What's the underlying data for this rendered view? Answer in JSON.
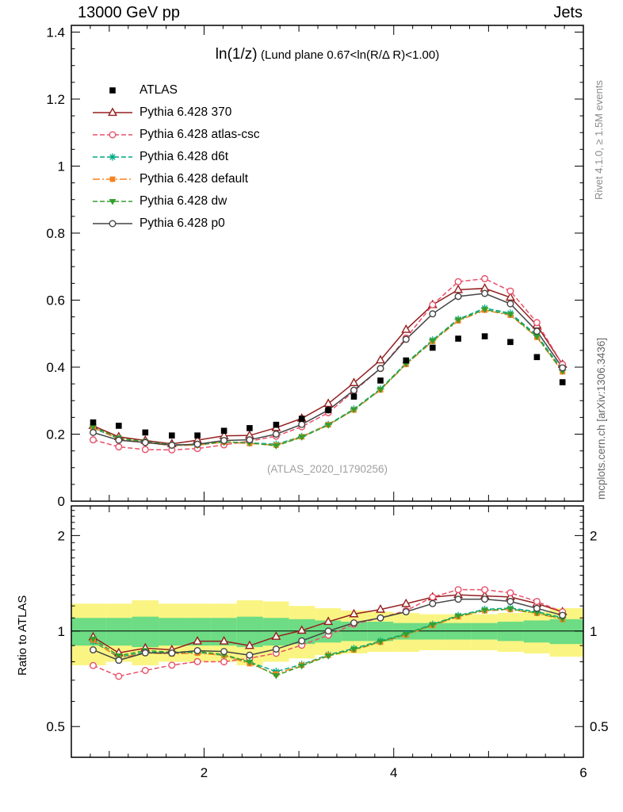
{
  "header": {
    "left": "13000 GeV pp",
    "right": "Jets"
  },
  "side_notes": {
    "rivet": "Rivet 4.1.0, ≥ 1.5M events",
    "mcplots": "mcplots.cern.ch [arXiv:1306.3436]"
  },
  "watermark": "(ATLAS_2020_I1790256)",
  "ratio_axis_label": "Ratio to ATLAS",
  "title": {
    "observable": "ln(1/z)",
    "selection": "(Lund plane 0.67<ln(R/Δ R)<1.00)"
  },
  "chart_data": {
    "type": "line",
    "title": "ln(1/z) (Lund plane 0.67<ln(R/Δ R)<1.00)",
    "xlabel": "",
    "ylabel": "",
    "ratio_ylabel": "Ratio to ATLAS",
    "legend_position": "top-left",
    "grid": false,
    "xlim": [
      0.6,
      6.0
    ],
    "ylim_main": [
      0,
      1.42
    ],
    "ylim_ratio": [
      0.4,
      2.48
    ],
    "ratio_scale": "log",
    "x_ticks": [
      2,
      4,
      6
    ],
    "y_ticks_main": [
      0,
      0.2,
      0.4,
      0.6,
      0.8,
      1,
      1.2,
      1.4
    ],
    "y_ticks_ratio": [
      0.5,
      1,
      2
    ],
    "x": [
      0.83,
      1.1,
      1.38,
      1.66,
      1.93,
      2.21,
      2.48,
      2.76,
      3.03,
      3.31,
      3.58,
      3.86,
      4.13,
      4.41,
      4.68,
      4.96,
      5.23,
      5.51,
      5.78
    ],
    "reference": {
      "name": "ATLAS",
      "color": "#000000",
      "marker": "square",
      "line": "none",
      "values": [
        0.235,
        0.225,
        0.205,
        0.196,
        0.196,
        0.21,
        0.218,
        0.228,
        0.246,
        0.272,
        0.312,
        0.36,
        0.42,
        0.458,
        0.485,
        0.492,
        0.475,
        0.43,
        0.355
      ]
    },
    "series": [
      {
        "name": "Pythia 6.428 370",
        "color": "#941f1f",
        "line": "solid",
        "marker": "triangle-open",
        "values": [
          0.225,
          0.192,
          0.181,
          0.171,
          0.182,
          0.195,
          0.196,
          0.219,
          0.247,
          0.291,
          0.353,
          0.421,
          0.512,
          0.586,
          0.631,
          0.635,
          0.608,
          0.525,
          0.408
        ]
      },
      {
        "name": "Pythia 6.428 atlas-csc",
        "color": "#e8506a",
        "line": "dashed",
        "marker": "circle-open",
        "values": [
          0.183,
          0.162,
          0.154,
          0.153,
          0.157,
          0.168,
          0.179,
          0.194,
          0.222,
          0.264,
          0.328,
          0.396,
          0.487,
          0.586,
          0.655,
          0.664,
          0.627,
          0.533,
          0.408
        ]
      },
      {
        "name": "Pythia 6.428 d6t",
        "color": "#00a884",
        "line": "dashed",
        "marker": "asterisk",
        "values": [
          0.218,
          0.186,
          0.176,
          0.167,
          0.168,
          0.176,
          0.174,
          0.17,
          0.193,
          0.229,
          0.275,
          0.335,
          0.412,
          0.481,
          0.543,
          0.576,
          0.561,
          0.495,
          0.391
        ]
      },
      {
        "name": "Pythia 6.428 default",
        "color": "#f5821f",
        "line": "dashdot",
        "marker": "square-filled",
        "values": [
          0.22,
          0.185,
          0.175,
          0.166,
          0.167,
          0.176,
          0.172,
          0.167,
          0.192,
          0.228,
          0.272,
          0.332,
          0.408,
          0.477,
          0.538,
          0.57,
          0.555,
          0.489,
          0.386
        ]
      },
      {
        "name": "Pythia 6.428 dw",
        "color": "#33a02c",
        "line": "dashed",
        "marker": "triangle-down-filled",
        "values": [
          0.222,
          0.188,
          0.178,
          0.168,
          0.169,
          0.177,
          0.174,
          0.165,
          0.191,
          0.227,
          0.273,
          0.333,
          0.41,
          0.479,
          0.541,
          0.572,
          0.557,
          0.491,
          0.388
        ]
      },
      {
        "name": "Pythia 6.428 p0",
        "color": "#444444",
        "line": "solid",
        "marker": "circle-open",
        "values": [
          0.205,
          0.182,
          0.175,
          0.167,
          0.17,
          0.181,
          0.183,
          0.2,
          0.229,
          0.272,
          0.331,
          0.396,
          0.483,
          0.559,
          0.611,
          0.62,
          0.589,
          0.507,
          0.398
        ]
      }
    ],
    "bands": {
      "yellow": {
        "color": "#faf582",
        "lo": [
          0.78,
          0.8,
          0.78,
          0.8,
          0.8,
          0.8,
          0.78,
          0.8,
          0.82,
          0.84,
          0.85,
          0.86,
          0.86,
          0.87,
          0.87,
          0.87,
          0.86,
          0.85,
          0.83
        ],
        "hi": [
          1.22,
          1.22,
          1.25,
          1.22,
          1.22,
          1.22,
          1.25,
          1.24,
          1.2,
          1.18,
          1.16,
          1.15,
          1.14,
          1.13,
          1.13,
          1.13,
          1.14,
          1.15,
          1.18
        ]
      },
      "green": {
        "color": "#6ddc84",
        "lo": [
          0.9,
          0.9,
          0.89,
          0.9,
          0.9,
          0.9,
          0.89,
          0.9,
          0.91,
          0.92,
          0.93,
          0.93,
          0.94,
          0.94,
          0.94,
          0.94,
          0.93,
          0.92,
          0.91
        ],
        "hi": [
          1.1,
          1.1,
          1.11,
          1.1,
          1.1,
          1.1,
          1.11,
          1.1,
          1.09,
          1.08,
          1.07,
          1.07,
          1.06,
          1.06,
          1.06,
          1.06,
          1.07,
          1.08,
          1.09
        ]
      },
      "reference_line": 1
    }
  }
}
